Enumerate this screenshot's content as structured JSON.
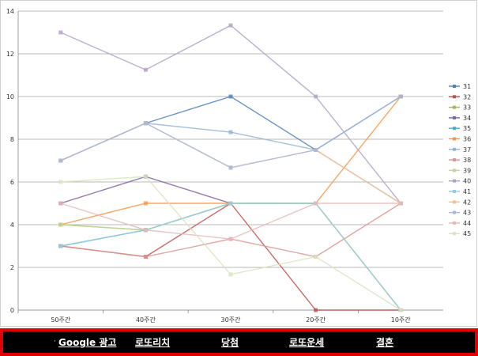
{
  "chart_data": {
    "type": "line",
    "categories": [
      "50주간",
      "40주간",
      "30주간",
      "20주간",
      "10주간"
    ],
    "ylim": [
      0,
      14
    ],
    "yticks": [
      0,
      2,
      4,
      6,
      8,
      10,
      12,
      14
    ],
    "grid": true,
    "legend_position": "right",
    "series": [
      {
        "name": "31",
        "color": "#4f81bd",
        "values": [
          7,
          8.75,
          10,
          7.5,
          10
        ]
      },
      {
        "name": "32",
        "color": "#c0504d",
        "values": [
          3,
          2.5,
          5,
          0,
          0
        ]
      },
      {
        "name": "33",
        "color": "#9bbb59",
        "values": [
          4,
          3.75,
          5,
          5,
          0
        ]
      },
      {
        "name": "34",
        "color": "#8064a2",
        "values": [
          5,
          6.25,
          5,
          null,
          null
        ]
      },
      {
        "name": "35",
        "color": "#4bacc6",
        "values": [
          3,
          3.75,
          5,
          null,
          null
        ]
      },
      {
        "name": "36",
        "color": "#f79646",
        "values": [
          4,
          5,
          5,
          5,
          10
        ]
      },
      {
        "name": "37",
        "color": "#95b3d7",
        "values": [
          7,
          8.75,
          8.33,
          7.5,
          5
        ]
      },
      {
        "name": "38",
        "color": "#d99694",
        "values": [
          3,
          2.5,
          3.33,
          2.5,
          5
        ]
      },
      {
        "name": "39",
        "color": "#c3d69b",
        "values": [
          4,
          3.75,
          5,
          5,
          0
        ]
      },
      {
        "name": "40",
        "color": "#b2a1c7",
        "values": [
          13,
          11.25,
          13.33,
          10,
          5
        ]
      },
      {
        "name": "41",
        "color": "#93cddd",
        "values": [
          3,
          3.75,
          5,
          5,
          0
        ]
      },
      {
        "name": "42",
        "color": "#fac08f",
        "values": [
          7,
          8.75,
          6.67,
          7.5,
          5
        ]
      },
      {
        "name": "43",
        "color": "#a6b9dc",
        "values": [
          7,
          8.75,
          6.67,
          7.5,
          10
        ]
      },
      {
        "name": "44",
        "color": "#e6b9b8",
        "values": [
          5,
          3.75,
          3.33,
          5,
          5
        ]
      },
      {
        "name": "45",
        "color": "#d7e4bd",
        "values": [
          6,
          6.25,
          1.67,
          2.5,
          0
        ]
      }
    ]
  },
  "bottom_bar": {
    "links": [
      {
        "label": "Google 광고"
      },
      {
        "label": "로또리치"
      },
      {
        "label": "당첨"
      },
      {
        "label": "로또운세"
      },
      {
        "label": "결혼"
      }
    ],
    "separator": "·"
  }
}
